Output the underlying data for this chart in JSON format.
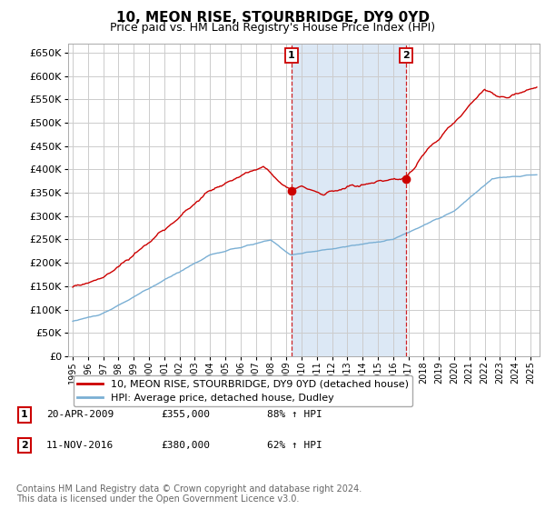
{
  "title": "10, MEON RISE, STOURBRIDGE, DY9 0YD",
  "subtitle": "Price paid vs. HM Land Registry's House Price Index (HPI)",
  "title_fontsize": 11,
  "subtitle_fontsize": 9,
  "background_color": "#ffffff",
  "plot_bg_color": "#ffffff",
  "grid_color": "#cccccc",
  "shade_color": "#dce8f5",
  "red_line_color": "#cc0000",
  "blue_line_color": "#7aafd4",
  "ylim": [
    0,
    670000
  ],
  "ytick_step": 50000,
  "legend_entries": [
    "10, MEON RISE, STOURBRIDGE, DY9 0YD (detached house)",
    "HPI: Average price, detached house, Dudley"
  ],
  "transaction1": {
    "label": "1",
    "date": "20-APR-2009",
    "price": "£355,000",
    "pct": "88% ↑ HPI"
  },
  "transaction2": {
    "label": "2",
    "date": "11-NOV-2016",
    "price": "£380,000",
    "pct": "62% ↑ HPI"
  },
  "t1_year": 2009.3,
  "t2_year": 2016.85,
  "footnote": "Contains HM Land Registry data © Crown copyright and database right 2024.\nThis data is licensed under the Open Government Licence v3.0.",
  "footnote_fontsize": 7
}
